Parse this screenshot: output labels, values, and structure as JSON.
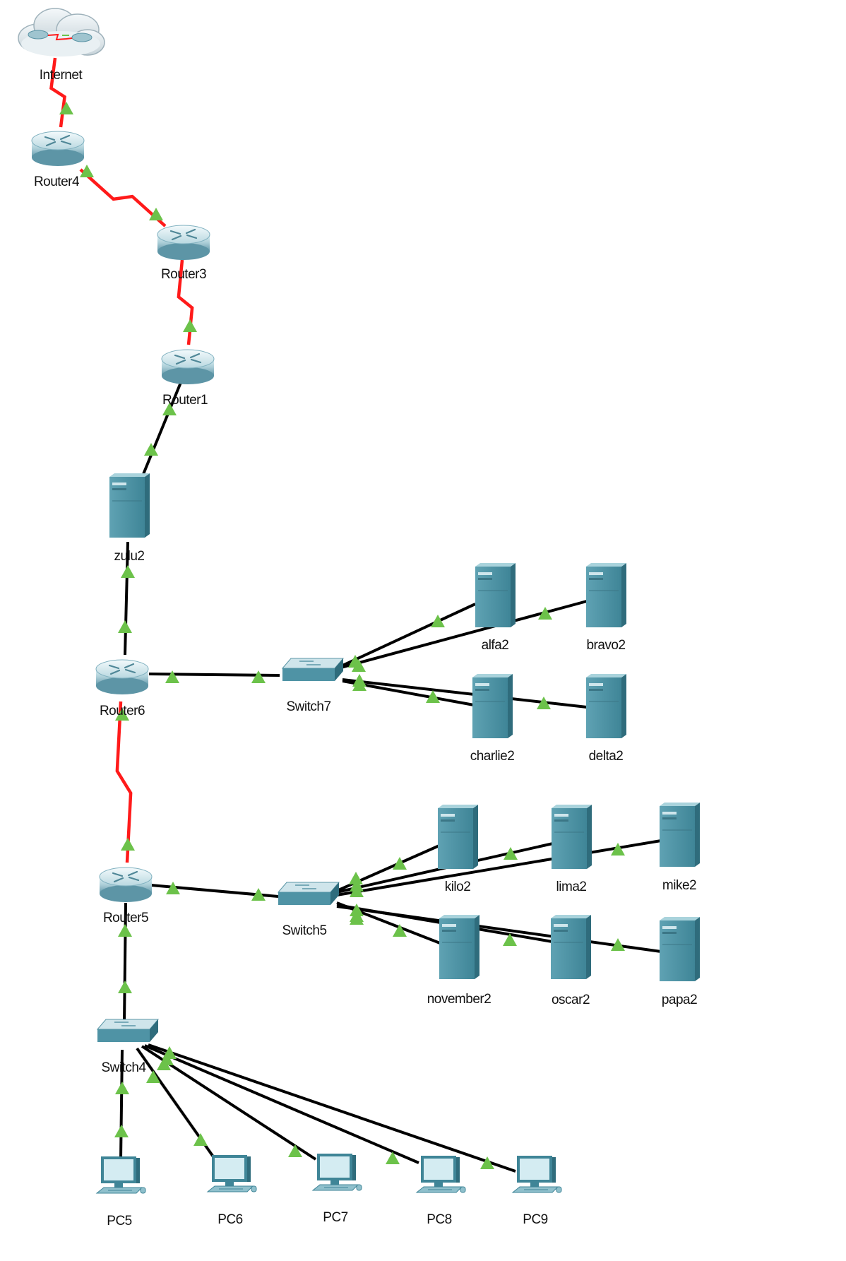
{
  "colors": {
    "serial_link": "#ff1a1a",
    "ethernet_link": "#000000",
    "link_light": "#6cc24a",
    "device_teal": "#4f93a5",
    "device_light": "#a9d3dc",
    "device_dark": "#2f6c7c"
  },
  "nodes": {
    "internet": {
      "label": "Internet",
      "icon": "cloud-icon"
    },
    "router4": {
      "label": "Router4",
      "icon": "router-icon"
    },
    "router3": {
      "label": "Router3",
      "icon": "router-icon"
    },
    "router1": {
      "label": "Router1",
      "icon": "router-icon"
    },
    "zulu2": {
      "label": "zulu2",
      "icon": "server-icon"
    },
    "router6": {
      "label": "Router6",
      "icon": "router-icon"
    },
    "switch7": {
      "label": "Switch7",
      "icon": "switch-icon"
    },
    "alfa2": {
      "label": "alfa2",
      "icon": "server-icon"
    },
    "bravo2": {
      "label": "bravo2",
      "icon": "server-icon"
    },
    "charlie2": {
      "label": "charlie2",
      "icon": "server-icon"
    },
    "delta2": {
      "label": "delta2",
      "icon": "server-icon"
    },
    "router5": {
      "label": "Router5",
      "icon": "router-icon"
    },
    "switch5": {
      "label": "Switch5",
      "icon": "switch-icon"
    },
    "kilo2": {
      "label": "kilo2",
      "icon": "server-icon"
    },
    "lima2": {
      "label": "lima2",
      "icon": "server-icon"
    },
    "mike2": {
      "label": "mike2",
      "icon": "server-icon"
    },
    "november2": {
      "label": "november2",
      "icon": "server-icon"
    },
    "oscar2": {
      "label": "oscar2",
      "icon": "server-icon"
    },
    "papa2": {
      "label": "papa2",
      "icon": "server-icon"
    },
    "switch4": {
      "label": "Switch4",
      "icon": "switch-icon"
    },
    "pc5": {
      "label": "PC5",
      "icon": "pc-icon"
    },
    "pc6": {
      "label": "PC6",
      "icon": "pc-icon"
    },
    "pc7": {
      "label": "PC7",
      "icon": "pc-icon"
    },
    "pc8": {
      "label": "PC8",
      "icon": "pc-icon"
    },
    "pc9": {
      "label": "PC9",
      "icon": "pc-icon"
    }
  },
  "links": [
    {
      "from": "internet",
      "to": "router4",
      "type": "serial"
    },
    {
      "from": "router4",
      "to": "router3",
      "type": "serial"
    },
    {
      "from": "router3",
      "to": "router1",
      "type": "serial"
    },
    {
      "from": "router1",
      "to": "zulu2",
      "type": "ethernet"
    },
    {
      "from": "zulu2",
      "to": "router6",
      "type": "ethernet"
    },
    {
      "from": "router6",
      "to": "switch7",
      "type": "ethernet"
    },
    {
      "from": "switch7",
      "to": "alfa2",
      "type": "ethernet"
    },
    {
      "from": "switch7",
      "to": "bravo2",
      "type": "ethernet"
    },
    {
      "from": "switch7",
      "to": "charlie2",
      "type": "ethernet"
    },
    {
      "from": "switch7",
      "to": "delta2",
      "type": "ethernet"
    },
    {
      "from": "router6",
      "to": "router5",
      "type": "serial"
    },
    {
      "from": "router5",
      "to": "switch5",
      "type": "ethernet"
    },
    {
      "from": "switch5",
      "to": "kilo2",
      "type": "ethernet"
    },
    {
      "from": "switch5",
      "to": "lima2",
      "type": "ethernet"
    },
    {
      "from": "switch5",
      "to": "mike2",
      "type": "ethernet"
    },
    {
      "from": "switch5",
      "to": "november2",
      "type": "ethernet"
    },
    {
      "from": "switch5",
      "to": "oscar2",
      "type": "ethernet"
    },
    {
      "from": "switch5",
      "to": "papa2",
      "type": "ethernet"
    },
    {
      "from": "router5",
      "to": "switch4",
      "type": "ethernet"
    },
    {
      "from": "switch4",
      "to": "pc5",
      "type": "ethernet"
    },
    {
      "from": "switch4",
      "to": "pc6",
      "type": "ethernet"
    },
    {
      "from": "switch4",
      "to": "pc7",
      "type": "ethernet"
    },
    {
      "from": "switch4",
      "to": "pc8",
      "type": "ethernet"
    },
    {
      "from": "switch4",
      "to": "pc9",
      "type": "ethernet"
    }
  ]
}
